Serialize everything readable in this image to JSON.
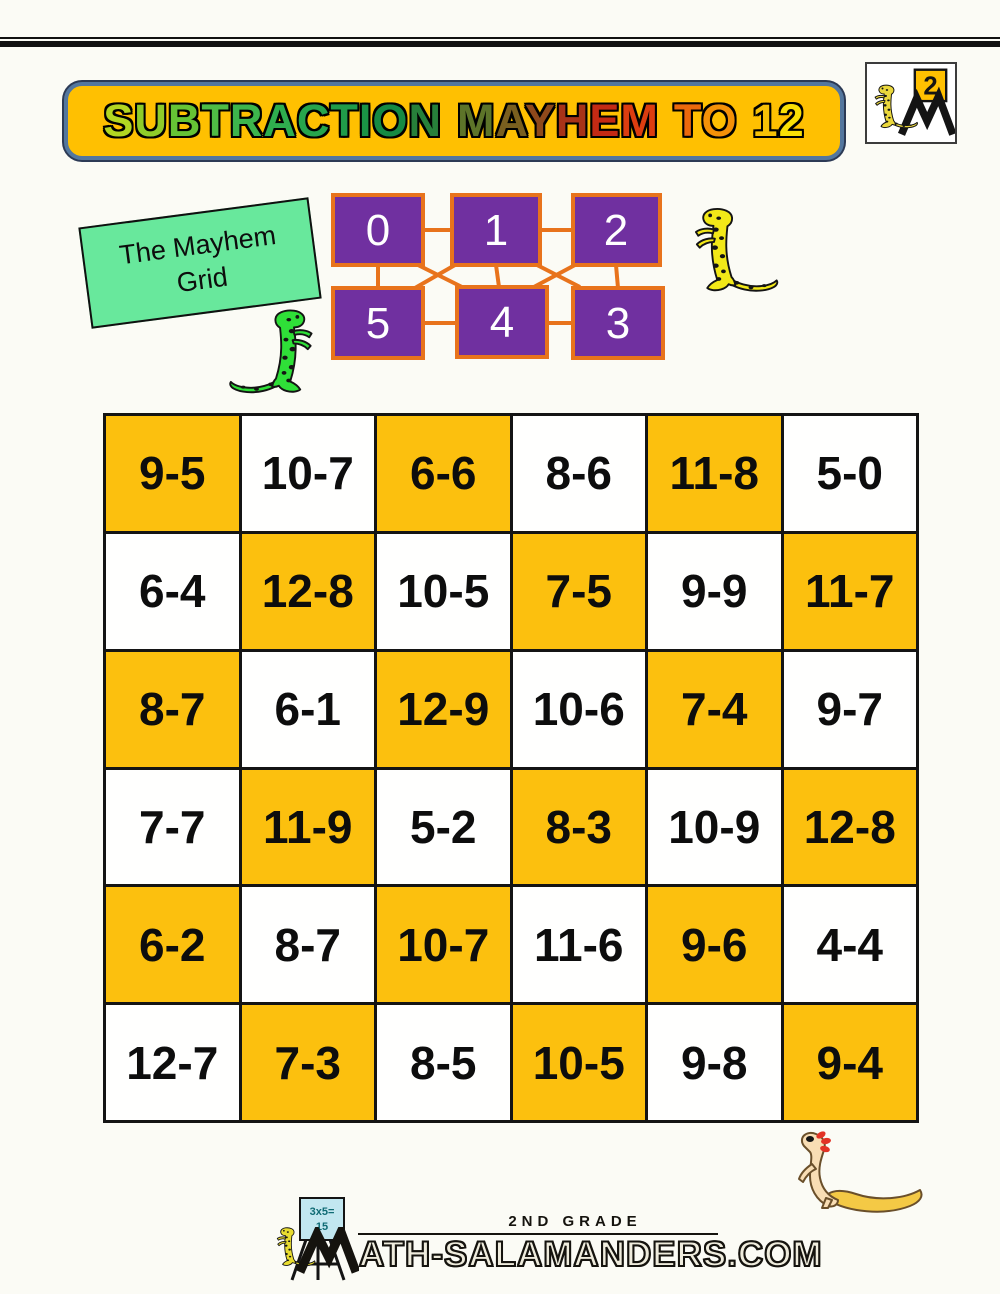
{
  "header": {
    "title": "SUBTRACTION MAYHEM TO 12",
    "title_letters": [
      {
        "ch": "S",
        "color": "#b2d622"
      },
      {
        "ch": "U",
        "color": "#8fcc2a"
      },
      {
        "ch": "B",
        "color": "#66c335"
      },
      {
        "ch": "T",
        "color": "#4fbc45"
      },
      {
        "ch": "R",
        "color": "#3db54c"
      },
      {
        "ch": "A",
        "color": "#2fae4e"
      },
      {
        "ch": "C",
        "color": "#27a54c"
      },
      {
        "ch": "T",
        "color": "#209c49"
      },
      {
        "ch": "I",
        "color": "#1a9346"
      },
      {
        "ch": "O",
        "color": "#168a43"
      },
      {
        "ch": "N",
        "color": "#27803a"
      },
      {
        "ch": " "
      },
      {
        "ch": "M",
        "color": "#5d7429"
      },
      {
        "ch": "A",
        "color": "#7a5f1f"
      },
      {
        "ch": "Y",
        "color": "#8f491b"
      },
      {
        "ch": "H",
        "color": "#a83318"
      },
      {
        "ch": "E",
        "color": "#c42a14"
      },
      {
        "ch": "M",
        "color": "#dc3d10"
      },
      {
        "ch": " "
      },
      {
        "ch": "T",
        "color": "#ec690c"
      },
      {
        "ch": "O",
        "color": "#f39108"
      },
      {
        "ch": " "
      },
      {
        "ch": "1",
        "color": "#f7c106"
      },
      {
        "ch": "2",
        "color": "#fadf05"
      }
    ],
    "logo_number": "2"
  },
  "mayhem_grid": {
    "sign_line1": "The Mayhem",
    "sign_line2": "Grid",
    "top_numbers": [
      "0",
      "1",
      "2"
    ],
    "bottom_numbers": [
      "5",
      "4",
      "3"
    ]
  },
  "puzzle": {
    "rows": [
      [
        "9-5",
        "10-7",
        "6-6",
        "8-6",
        "11-8",
        "5-0"
      ],
      [
        "6-4",
        "12-8",
        "10-5",
        "7-5",
        "9-9",
        "11-7"
      ],
      [
        "8-7",
        "6-1",
        "12-9",
        "10-6",
        "7-4",
        "9-7"
      ],
      [
        "7-7",
        "11-9",
        "5-2",
        "8-3",
        "10-9",
        "12-8"
      ],
      [
        "6-2",
        "8-7",
        "10-7",
        "11-6",
        "9-6",
        "4-4"
      ],
      [
        "12-7",
        "7-3",
        "8-5",
        "10-5",
        "9-8",
        "9-4"
      ]
    ]
  },
  "footer": {
    "grade_text": "2ND GRADE",
    "site_rest": "ATH-SALAMANDERS.COM",
    "easel_line1": "3x5=",
    "easel_line2": "15"
  },
  "colors": {
    "banner_fill": "#ffc001",
    "banner_border": "#54779e",
    "cell_gold": "#fcc00e",
    "cell_white": "#fffffe",
    "purple_box": "#7030a0",
    "grid_line_orange": "#e8731c",
    "sign_green": "#68e89c",
    "salamander_yellow": "#f2e818",
    "salamander_green": "#2fdf38"
  }
}
